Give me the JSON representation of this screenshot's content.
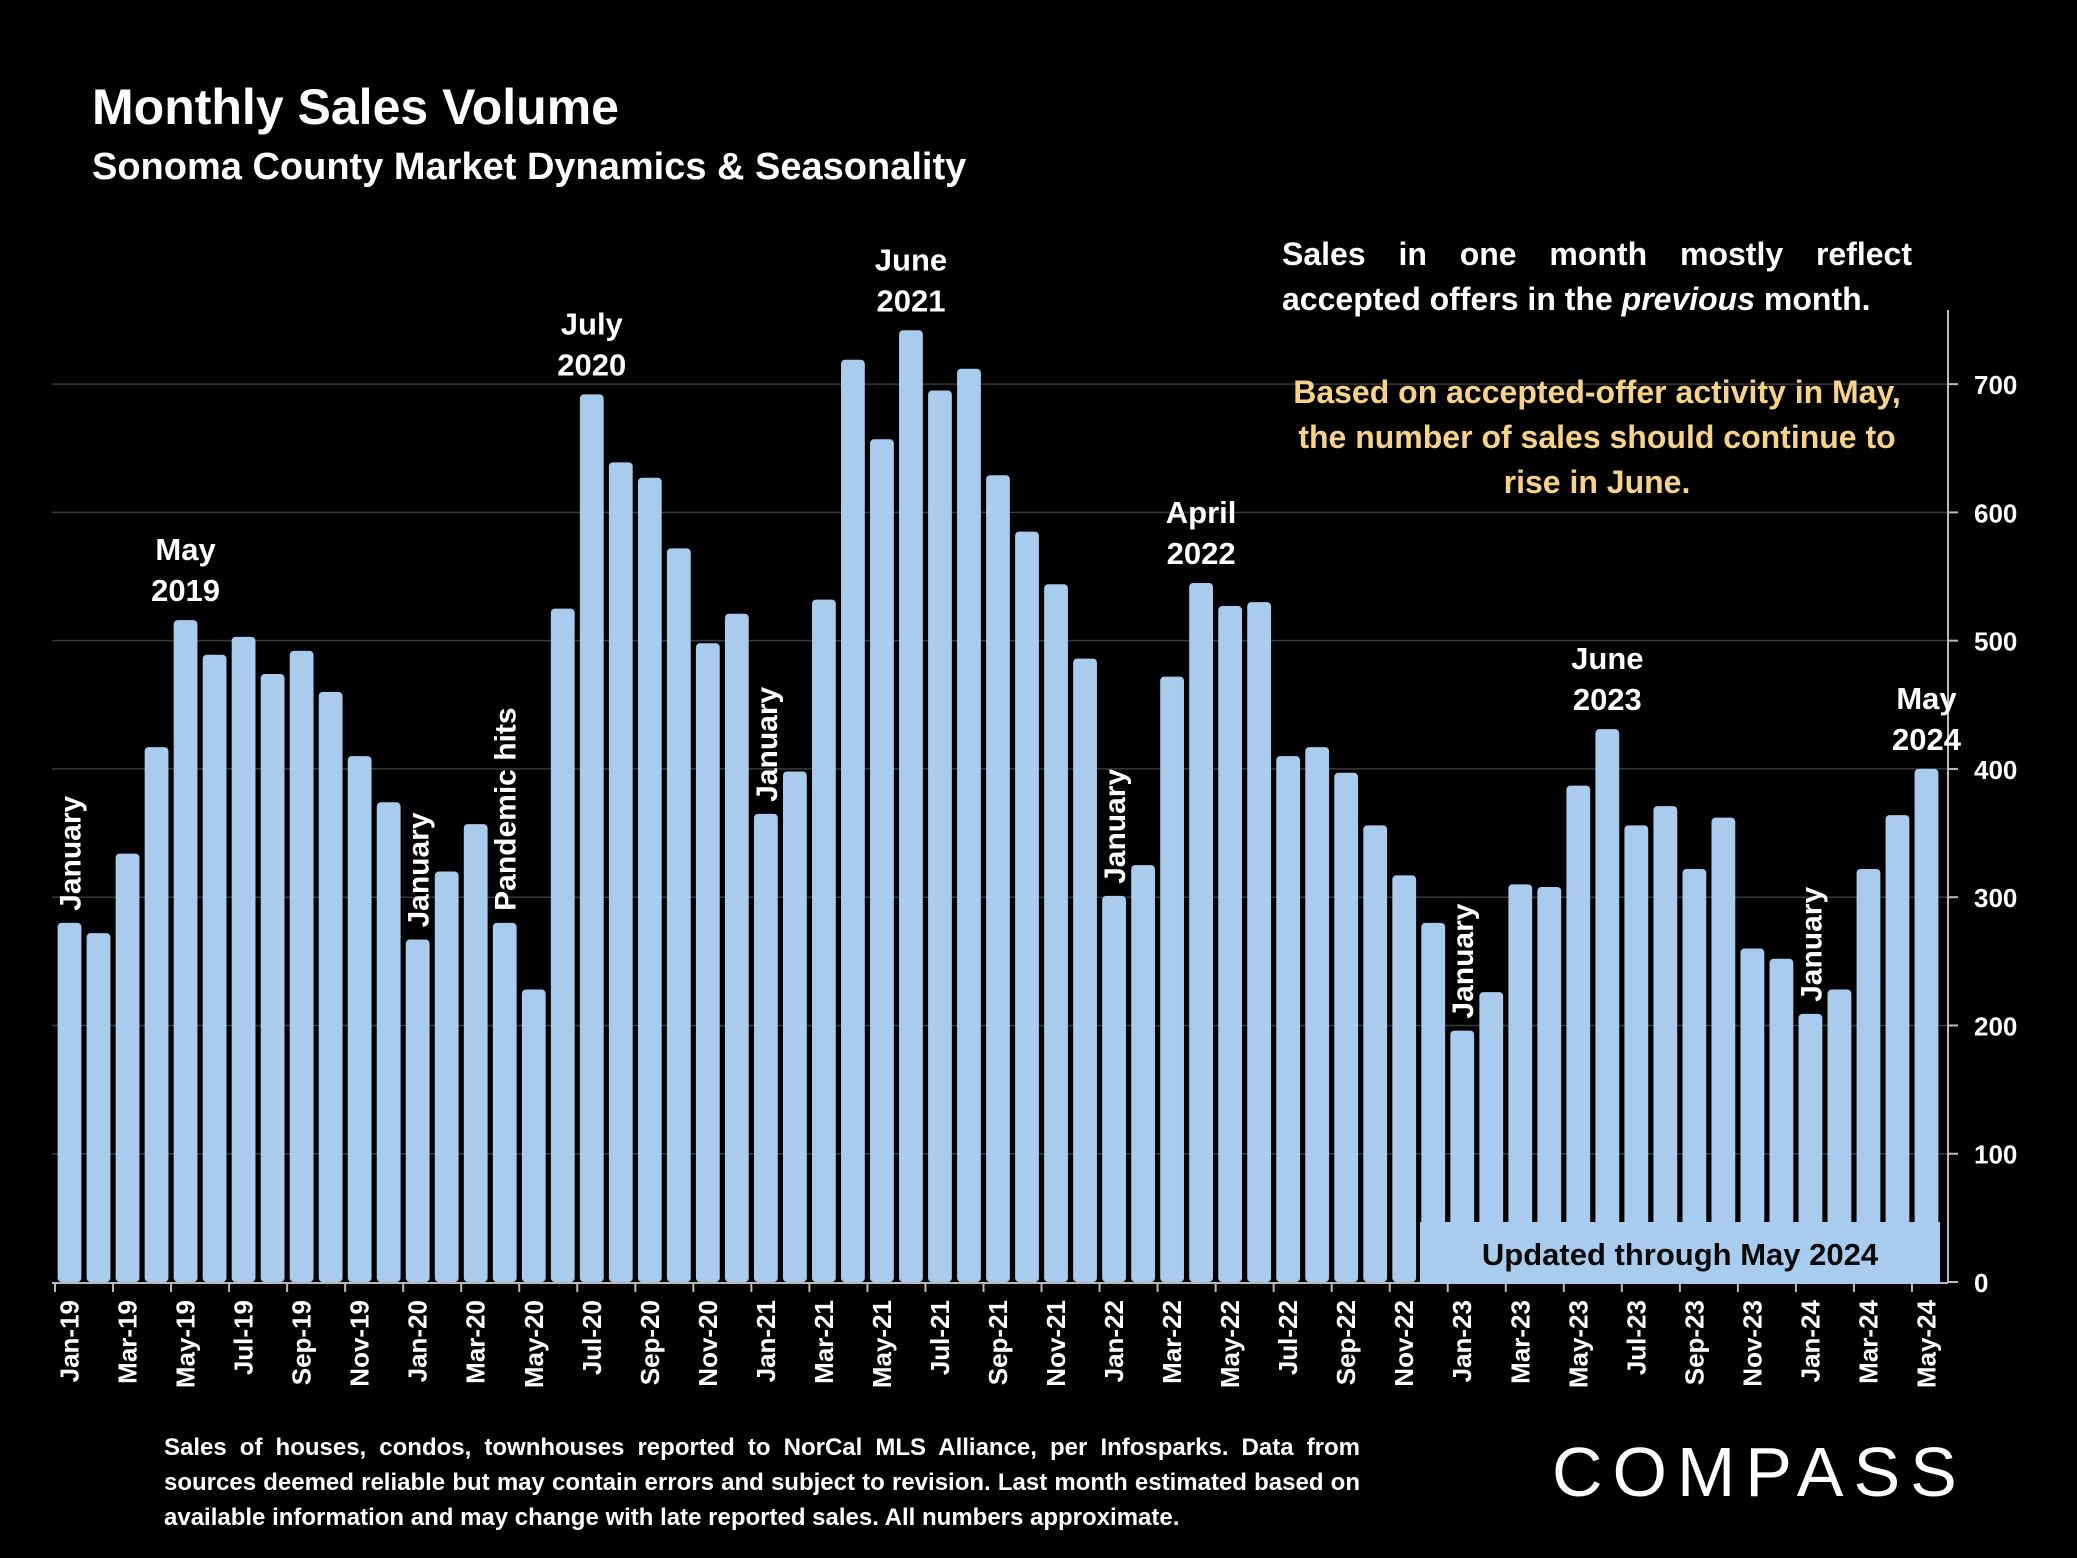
{
  "header": {
    "title": "Monthly Sales Volume",
    "subtitle": "Sonoma County Market Dynamics & Seasonality"
  },
  "notes": {
    "note1_part1": "Sales in one month mostly reflect accepted offers in the ",
    "note1_emphasis": "previous",
    "note1_part2": " month.",
    "note2": "Based on accepted-offer activity in May, the number of sales should continue to rise in June.",
    "updated": "Updated through May 2024"
  },
  "footer": {
    "source": "Sales of houses, condos, townhouses reported to NorCal MLS Alliance, per Infosparks. Data from sources deemed reliable but may contain errors and subject to revision. Last month estimated based on available information and may change with late reported sales. All numbers approximate."
  },
  "brand": {
    "logo": "COMPASS"
  },
  "colors": {
    "background": "#000000",
    "bar": "#a9cbee",
    "note_highlight": "#f7d389",
    "text": "#ffffff",
    "grid": "#3a3a3a"
  },
  "chart_data": {
    "type": "bar",
    "x": [
      "Jan-19",
      "Feb-19",
      "Mar-19",
      "Apr-19",
      "May-19",
      "Jun-19",
      "Jul-19",
      "Aug-19",
      "Sep-19",
      "Oct-19",
      "Nov-19",
      "Dec-19",
      "Jan-20",
      "Feb-20",
      "Mar-20",
      "Apr-20",
      "May-20",
      "Jun-20",
      "Jul-20",
      "Aug-20",
      "Sep-20",
      "Oct-20",
      "Nov-20",
      "Dec-20",
      "Jan-21",
      "Feb-21",
      "Mar-21",
      "Apr-21",
      "May-21",
      "Jun-21",
      "Jul-21",
      "Aug-21",
      "Sep-21",
      "Oct-21",
      "Nov-21",
      "Dec-21",
      "Jan-22",
      "Feb-22",
      "Mar-22",
      "Apr-22",
      "May-22",
      "Jun-22",
      "Jul-22",
      "Aug-22",
      "Sep-22",
      "Oct-22",
      "Nov-22",
      "Dec-22",
      "Jan-23",
      "Feb-23",
      "Mar-23",
      "Apr-23",
      "May-23",
      "Jun-23",
      "Jul-23",
      "Aug-23",
      "Sep-23",
      "Oct-23",
      "Nov-23",
      "Dec-23",
      "Jan-24",
      "Feb-24",
      "Mar-24",
      "Apr-24",
      "May-24"
    ],
    "x_tick_labels": [
      "Jan-19",
      "Mar-19",
      "May-19",
      "Jul-19",
      "Sep-19",
      "Nov-19",
      "Jan-20",
      "Mar-20",
      "May-20",
      "Jul-20",
      "Sep-20",
      "Nov-20",
      "Jan-21",
      "Mar-21",
      "May-21",
      "Jul-21",
      "Sep-21",
      "Nov-21",
      "Jan-22",
      "Mar-22",
      "May-22",
      "Jul-22",
      "Sep-22",
      "Nov-22",
      "Jan-23",
      "Mar-23",
      "May-23",
      "Jul-23",
      "Sep-23",
      "Nov-23",
      "Jan-24",
      "Mar-24",
      "May-24"
    ],
    "values": [
      280,
      272,
      334,
      417,
      516,
      489,
      503,
      474,
      492,
      460,
      410,
      374,
      267,
      320,
      357,
      280,
      228,
      525,
      692,
      639,
      627,
      572,
      498,
      521,
      365,
      398,
      532,
      719,
      657,
      742,
      695,
      712,
      629,
      585,
      544,
      486,
      301,
      325,
      472,
      545,
      527,
      530,
      410,
      417,
      397,
      356,
      317,
      280,
      196,
      226,
      310,
      308,
      387,
      431,
      356,
      371,
      322,
      362,
      260,
      252,
      209,
      228,
      322,
      364,
      400
    ],
    "ylim": [
      0,
      750
    ],
    "y_ticks": [
      0,
      100,
      200,
      300,
      400,
      500,
      600,
      700
    ],
    "y_axis_side": "right",
    "grid": true,
    "annotations": [
      {
        "text": "January",
        "x": "Jan-19",
        "orientation": "vertical"
      },
      {
        "text": "May 2019",
        "x": "May-19",
        "orientation": "horizontal"
      },
      {
        "text": "January",
        "x": "Jan-20",
        "orientation": "vertical"
      },
      {
        "text": "Pandemic hits",
        "x": "Apr-20",
        "orientation": "vertical"
      },
      {
        "text": "July 2020",
        "x": "Jul-20",
        "orientation": "horizontal"
      },
      {
        "text": "January",
        "x": "Jan-21",
        "orientation": "vertical"
      },
      {
        "text": "June 2021",
        "x": "Jun-21",
        "orientation": "horizontal"
      },
      {
        "text": "January",
        "x": "Jan-22",
        "orientation": "vertical"
      },
      {
        "text": "April 2022",
        "x": "Apr-22",
        "orientation": "horizontal"
      },
      {
        "text": "January",
        "x": "Jan-23",
        "orientation": "vertical"
      },
      {
        "text": "June 2023",
        "x": "Jun-23",
        "orientation": "horizontal"
      },
      {
        "text": "January",
        "x": "Jan-24",
        "orientation": "vertical"
      },
      {
        "text": "May 2024",
        "x": "May-24",
        "orientation": "horizontal"
      }
    ]
  }
}
